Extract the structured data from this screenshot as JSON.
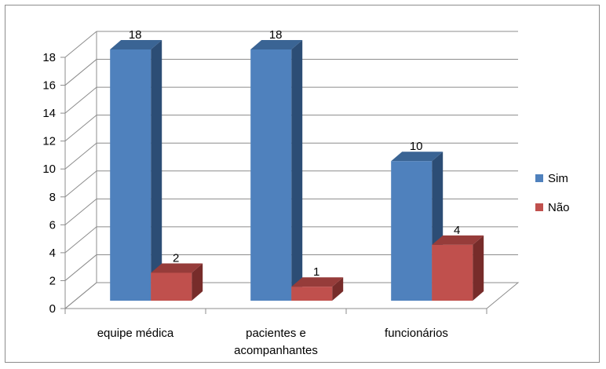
{
  "chart_data": {
    "type": "bar",
    "title": "",
    "xlabel": "",
    "ylabel": "",
    "ylim": [
      0,
      18
    ],
    "ytick_step": 2,
    "grid": true,
    "legend_position": "right",
    "categories": [
      "equipe médica",
      "pacientes e acompanhantes",
      "funcionários"
    ],
    "category_lines": [
      [
        "equipe médica"
      ],
      [
        "pacientes e",
        "acompanhantes"
      ],
      [
        "funcionários"
      ]
    ],
    "series": [
      {
        "name": "Sim",
        "values": [
          18,
          18,
          10
        ],
        "color": "#4f81bd",
        "side": "#2c4d75",
        "top": "#3a6494"
      },
      {
        "name": "Não",
        "values": [
          2,
          1,
          4
        ],
        "color": "#c0504d",
        "side": "#772c2a",
        "top": "#963c3a"
      }
    ]
  }
}
